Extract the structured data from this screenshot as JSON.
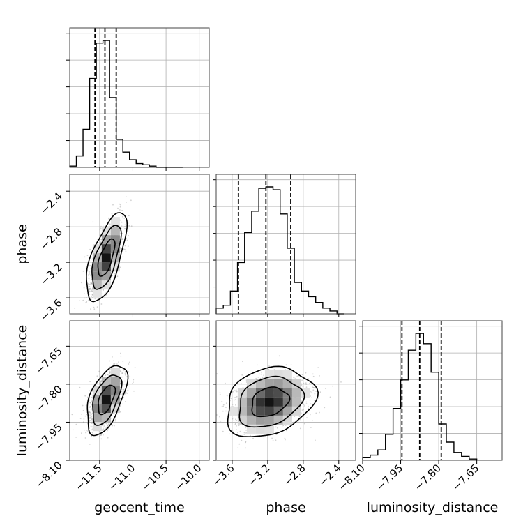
{
  "chart_data": {
    "type": "corner",
    "parameters": [
      "geocent_time",
      "phase",
      "luminosity_distance"
    ],
    "axis_labels": {
      "x": [
        "geocent_time",
        "phase",
        "luminosity_distance"
      ],
      "y_rows": [
        "phase",
        "luminosity_distance"
      ]
    },
    "ranges": [
      [
        -11.95,
        -9.85
      ],
      [
        -3.78,
        -2.21
      ],
      [
        -8.1,
        -7.55
      ]
    ],
    "ticks": [
      {
        "values": [
          -11.5,
          -11.0,
          -10.5,
          -10.0
        ],
        "labels": [
          "−11.5",
          "−11.0",
          "−10.5",
          "−10.0"
        ]
      },
      {
        "values": [
          -3.6,
          -3.2,
          -2.8,
          -2.4
        ],
        "labels": [
          "−3.6",
          "−3.2",
          "−2.8",
          "−2.4"
        ]
      },
      {
        "values": [
          -8.1,
          -7.95,
          -7.8,
          -7.65
        ],
        "labels": [
          "−8.10",
          "−7.95",
          "−7.80",
          "−7.65"
        ]
      }
    ],
    "marginals": [
      {
        "param": "geocent_time",
        "bin_edges": [
          -11.95,
          -11.85,
          -11.75,
          -11.65,
          -11.55,
          -11.45,
          -11.35,
          -11.25,
          -11.15,
          -11.05,
          -10.95,
          -10.85,
          -10.75,
          -10.65,
          -10.55,
          -10.45,
          -10.35,
          -10.25
        ],
        "counts": [
          1,
          9,
          30,
          70,
          98,
          100,
          55,
          22,
          12,
          6,
          3,
          2,
          1,
          0,
          0,
          0,
          0
        ],
        "quantiles": [
          -11.57,
          -11.42,
          -11.25
        ]
      },
      {
        "param": "phase",
        "bin_edges": [
          -3.78,
          -3.7,
          -3.62,
          -3.54,
          -3.46,
          -3.38,
          -3.3,
          -3.22,
          -3.14,
          -3.06,
          -2.98,
          -2.9,
          -2.82,
          -2.74,
          -2.66,
          -2.58,
          -2.5,
          -2.42,
          -2.34
        ],
        "counts": [
          4,
          6,
          16,
          36,
          57,
          72,
          88,
          89,
          87,
          70,
          46,
          22,
          16,
          12,
          8,
          4,
          2,
          0
        ],
        "quantiles": [
          -3.53,
          -3.22,
          -2.94
        ]
      },
      {
        "param": "luminosity_distance",
        "bin_edges": [
          -8.1,
          -8.07,
          -8.04,
          -8.01,
          -7.98,
          -7.95,
          -7.92,
          -7.89,
          -7.86,
          -7.83,
          -7.8,
          -7.77,
          -7.74,
          -7.71,
          -7.68,
          -7.65
        ],
        "counts": [
          2,
          4,
          8,
          20,
          40,
          62,
          85,
          98,
          90,
          68,
          28,
          14,
          6,
          3,
          1
        ],
        "quantiles": [
          -7.945,
          -7.875,
          -7.79
        ]
      }
    ],
    "joint": [
      {
        "x": "geocent_time",
        "y": "phase",
        "center": [
          -11.4,
          -3.15
        ],
        "sd": [
          0.12,
          0.2
        ],
        "rho": 0.65
      },
      {
        "x": "geocent_time",
        "y": "luminosity_distance",
        "center": [
          -11.4,
          -7.86
        ],
        "sd": [
          0.12,
          0.055
        ],
        "rho": 0.55
      },
      {
        "x": "phase",
        "y": "luminosity_distance",
        "center": [
          -3.18,
          -7.87
        ],
        "sd": [
          0.2,
          0.055
        ],
        "rho": 0.25
      }
    ],
    "grid": true,
    "colors": {
      "line": "#000000",
      "grid": "#b0b0b0",
      "points": "#7f7f7f"
    }
  }
}
